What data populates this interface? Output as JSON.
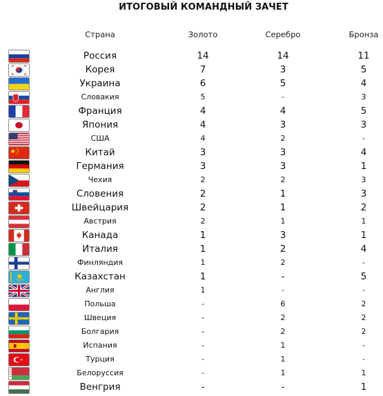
{
  "title": "ИТОГОВЫЙ КОМАНДНЫЙ ЗАЧЕТ",
  "headers": {
    "country": "Страна",
    "gold": "Золото",
    "silver": "Серебро",
    "bronze": "Бронза"
  },
  "rows": [
    {
      "country": "Россия",
      "gold": "14",
      "silver": "14",
      "bronze": "11",
      "flag": "russia-flag",
      "big": true
    },
    {
      "country": "Корея",
      "gold": "7",
      "silver": "3",
      "bronze": "5",
      "flag": "korea-flag",
      "big": true
    },
    {
      "country": "Украина",
      "gold": "6",
      "silver": "5",
      "bronze": "4",
      "flag": "ukraine-flag",
      "big": true
    },
    {
      "country": "Словакия",
      "gold": "5",
      "silver": "-",
      "bronze": "3",
      "flag": "slovakia-flag",
      "big": false
    },
    {
      "country": "Франция",
      "gold": "4",
      "silver": "4",
      "bronze": "5",
      "flag": "france-flag",
      "big": true
    },
    {
      "country": "Япония",
      "gold": "4",
      "silver": "3",
      "bronze": "3",
      "flag": "japan-flag",
      "big": true
    },
    {
      "country": "США",
      "gold": "4",
      "silver": "2",
      "bronze": "-",
      "flag": "usa-flag",
      "big": false
    },
    {
      "country": "Китай",
      "gold": "3",
      "silver": "3",
      "bronze": "4",
      "flag": "china-flag",
      "big": true
    },
    {
      "country": "Германия",
      "gold": "3",
      "silver": "3",
      "bronze": "1",
      "flag": "germany-flag",
      "big": true
    },
    {
      "country": "Чехия",
      "gold": "2",
      "silver": "2",
      "bronze": "3",
      "flag": "czech-flag",
      "big": false
    },
    {
      "country": "Словения",
      "gold": "2",
      "silver": "1",
      "bronze": "3",
      "flag": "slovenia-flag",
      "big": true
    },
    {
      "country": "Швейцария",
      "gold": "2",
      "silver": "1",
      "bronze": "2",
      "flag": "switzerland-flag",
      "big": true
    },
    {
      "country": "Австрия",
      "gold": "2",
      "silver": "1",
      "bronze": "1",
      "flag": "austria-flag",
      "big": false
    },
    {
      "country": "Канада",
      "gold": "1",
      "silver": "3",
      "bronze": "1",
      "flag": "canada-flag",
      "big": true
    },
    {
      "country": "Италия",
      "gold": "1",
      "silver": "2",
      "bronze": "4",
      "flag": "italy-flag",
      "big": true
    },
    {
      "country": "Финляндия",
      "gold": "1",
      "silver": "2",
      "bronze": "-",
      "flag": "finland-flag",
      "big": false
    },
    {
      "country": "Казахстан",
      "gold": "1",
      "silver": "-",
      "bronze": "5",
      "flag": "kazakhstan-flag",
      "big": true
    },
    {
      "country": "Англия",
      "gold": "1",
      "silver": "-",
      "bronze": "-",
      "flag": "uk-flag",
      "big": false
    },
    {
      "country": "Польша",
      "gold": "-",
      "silver": "6",
      "bronze": "2",
      "flag": "poland-flag",
      "big": false
    },
    {
      "country": "Швеция",
      "gold": "-",
      "silver": "2",
      "bronze": "2",
      "flag": "sweden-flag",
      "big": false
    },
    {
      "country": "Болгария",
      "gold": "-",
      "silver": "2",
      "bronze": "2",
      "flag": "bulgaria-flag",
      "big": false
    },
    {
      "country": "Испания",
      "gold": "-",
      "silver": "1",
      "bronze": "-",
      "flag": "spain-flag",
      "big": false
    },
    {
      "country": "Турция",
      "gold": "-",
      "silver": "1",
      "bronze": "-",
      "flag": "turkey-flag",
      "big": false
    },
    {
      "country": "Белоруссия",
      "gold": "-",
      "silver": "1",
      "bronze": "1",
      "flag": "belarus-flag",
      "big": false
    },
    {
      "country": "Венгрия",
      "gold": "-",
      "silver": "-",
      "bronze": "1",
      "flag": "hungary-flag",
      "big": true
    }
  ]
}
